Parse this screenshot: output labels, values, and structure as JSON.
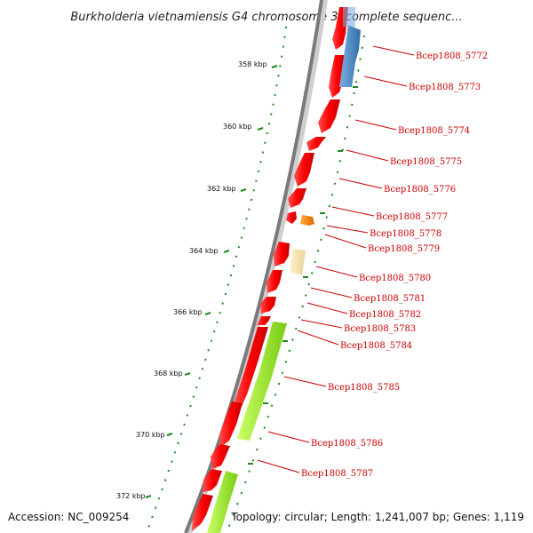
{
  "title": "Burkholderia vietnamiensis G4 chromosome 3, complete sequenc...",
  "accession": "Accession: NC_009254",
  "summary": "Topology: circular; Length: 1,241,007 bp; Genes: 1,119",
  "colors": {
    "forward_cds": "#ee0000",
    "reverse_cds_blue": "#4a88c4",
    "reverse_cds_green": "#99ee22",
    "reverse_cds_orange": "#ee7700",
    "reverse_cds_tan": "#eeddaa",
    "backbone": "#777777",
    "gc_dots": "#1a8a1a",
    "label": "#cc0000"
  },
  "kbp_ticks": [
    {
      "label": "358 kbp"
    },
    {
      "label": "360 kbp"
    },
    {
      "label": "362 kbp"
    },
    {
      "label": "364 kbp"
    },
    {
      "label": "366 kbp"
    },
    {
      "label": "368 kbp"
    },
    {
      "label": "370 kbp"
    },
    {
      "label": "372 kbp"
    }
  ],
  "gene_labels": [
    {
      "text": "Bcep1808_5772"
    },
    {
      "text": "Bcep1808_5773"
    },
    {
      "text": "Bcep1808_5774"
    },
    {
      "text": "Bcep1808_5775"
    },
    {
      "text": "Bcep1808_5776"
    },
    {
      "text": "Bcep1808_5777"
    },
    {
      "text": "Bcep1808_5778"
    },
    {
      "text": "Bcep1808_5779"
    },
    {
      "text": "Bcep1808_5780"
    },
    {
      "text": "Bcep1808_5781"
    },
    {
      "text": "Bcep1808_5782"
    },
    {
      "text": "Bcep1808_5783"
    },
    {
      "text": "Bcep1808_5784"
    },
    {
      "text": "Bcep1808_5785"
    },
    {
      "text": "Bcep1808_5786"
    },
    {
      "text": "Bcep1808_5787"
    }
  ]
}
